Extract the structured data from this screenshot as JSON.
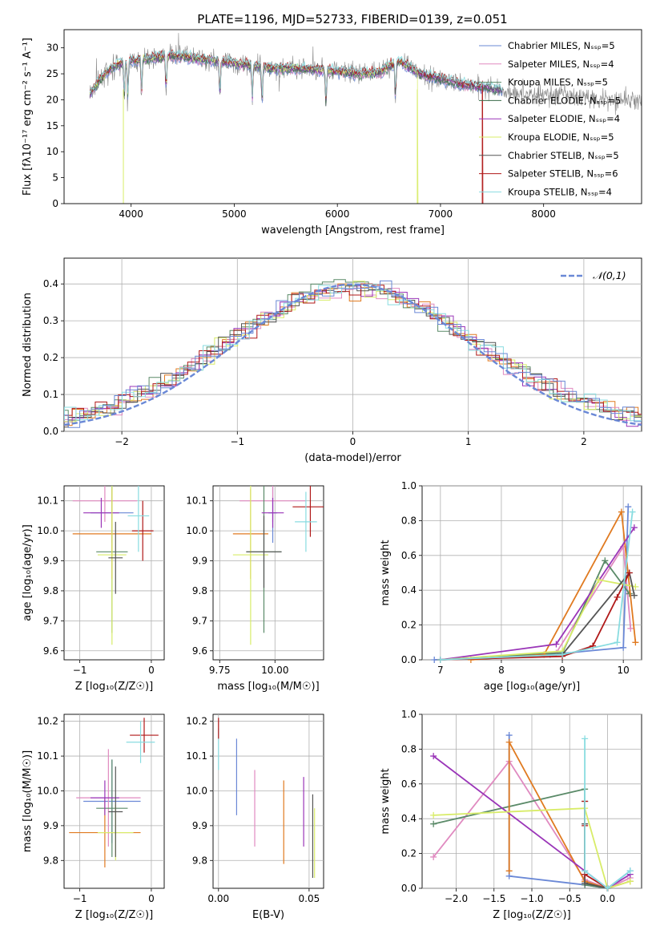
{
  "figure_title": "PLATE=1196, MJD=52733, FIBERID=0139, z=0.051",
  "colors": {
    "blue": "#6a88d6",
    "pink": "#e08ac0",
    "teal": "#5a8a68",
    "orange": "#e07a20",
    "purple": "#9a35b8",
    "lime": "#d8ec68",
    "darkgray": "#555555",
    "red": "#b01818",
    "cyan": "#88dce0",
    "gray": "#888888"
  },
  "chart_data": [
    {
      "id": "spectrum",
      "type": "line",
      "title": "PLATE=1196, MJD=52733, FIBERID=0139, z=0.051",
      "xlabel": "wavelength [Angstrom, rest frame]",
      "ylabel": "Flux [fλ10⁻¹⁷ erg cm⁻² s⁻¹ A⁻¹]",
      "xlim": [
        3350,
        8950
      ],
      "ylim": [
        0,
        33.5
      ],
      "xticks": [
        4000,
        5000,
        6000,
        7000,
        8000
      ],
      "yticks": [
        0,
        5,
        10,
        15,
        20,
        25,
        30
      ],
      "grid": false,
      "legend_position": "top-right",
      "series": [
        {
          "name": "Chabrier MILES, Nₛₛₚ=5",
          "color": "#6a88d6"
        },
        {
          "name": "Salpeter MILES, Nₛₛₚ=4",
          "color": "#e08ac0"
        },
        {
          "name": "Kroupa MILES, Nₛₛₚ=5",
          "color": "#5a8a68"
        },
        {
          "name": "Chabrier ELODIE, Nₛₛₚ=5",
          "color": "#3a6a48"
        },
        {
          "name": "Salpeter ELODIE, Nₛₛₚ=4",
          "color": "#9a35b8"
        },
        {
          "name": "Kroupa ELODIE, Nₛₛₚ=5",
          "color": "#d8ec68"
        },
        {
          "name": "Chabrier STELIB, Nₛₛₚ=5",
          "color": "#555555"
        },
        {
          "name": "Salpeter STELIB, Nₛₛₚ=6",
          "color": "#b01818"
        },
        {
          "name": "Kroupa STELIB, Nₛₛₚ=4",
          "color": "#88dce0"
        }
      ],
      "continuum": [
        [
          3600,
          21
        ],
        [
          3700,
          24
        ],
        [
          3800,
          26
        ],
        [
          3900,
          27
        ],
        [
          4000,
          27.5
        ],
        [
          4200,
          28
        ],
        [
          4400,
          28.5
        ],
        [
          4600,
          28
        ],
        [
          4800,
          27.5
        ],
        [
          5000,
          27
        ],
        [
          5200,
          26.5
        ],
        [
          5400,
          26
        ],
        [
          5600,
          26
        ],
        [
          5800,
          25.8
        ],
        [
          6000,
          25.5
        ],
        [
          6200,
          25
        ],
        [
          6400,
          25.3
        ],
        [
          6600,
          27.5
        ],
        [
          6800,
          25
        ],
        [
          7000,
          24
        ],
        [
          7200,
          23
        ],
        [
          7400,
          22.5
        ],
        [
          7600,
          21.8
        ],
        [
          7800,
          21.2
        ],
        [
          8000,
          21
        ],
        [
          8200,
          20.8
        ],
        [
          8400,
          20.5
        ],
        [
          8600,
          20.2
        ],
        [
          8800,
          20
        ],
        [
          8950,
          19.8
        ]
      ],
      "absorption_lines": [
        3934,
        3968,
        4102,
        4340,
        4861,
        5175,
        5270,
        5890,
        6563
      ],
      "model_gaps": [
        [
          3925,
          3935,
          "#d8ec68"
        ],
        [
          6775,
          6790,
          "#d8ec68"
        ],
        [
          7405,
          7415,
          "#b01818"
        ]
      ]
    },
    {
      "id": "residuals",
      "type": "area",
      "xlabel": "(data-model)/error",
      "ylabel": "Normed distribution",
      "xlim": [
        -2.5,
        2.5
      ],
      "ylim": [
        0,
        0.47
      ],
      "xticks": [
        -2,
        -1,
        0,
        1,
        2
      ],
      "yticks": [
        0.0,
        0.1,
        0.2,
        0.3,
        0.4
      ],
      "grid": true,
      "legend_position": "top-right",
      "reference_label": "𝒩(0,1)",
      "reference_color": "#6a88d6"
    },
    {
      "id": "age-vs-Z",
      "type": "scatter",
      "xlabel": "Z [log₁₀(Z/Z☉)]",
      "ylabel": "age  [log₁₀(age/yr)]",
      "xlim": [
        -1.22,
        0.18
      ],
      "ylim": [
        9.57,
        10.15
      ],
      "xticks": [
        -1,
        0
      ],
      "yticks": [
        9.6,
        9.7,
        9.8,
        9.9,
        10.0,
        10.1
      ],
      "grid": true,
      "points": [
        {
          "x": -0.55,
          "y": 10.06,
          "xerr": 0.3,
          "yerr": 0.1,
          "color": "#6a88d6"
        },
        {
          "x": -0.65,
          "y": 10.1,
          "xerr": 0.45,
          "yerr": 0.07,
          "color": "#e08ac0"
        },
        {
          "x": -0.55,
          "y": 9.93,
          "xerr": 0.22,
          "yerr": 0.27,
          "color": "#5a8a68"
        },
        {
          "x": -0.55,
          "y": 9.99,
          "xerr": 0.55,
          "yerr": 0.15,
          "color": "#e07a20"
        },
        {
          "x": -0.7,
          "y": 10.06,
          "xerr": 0.25,
          "yerr": 0.05,
          "color": "#9a35b8"
        },
        {
          "x": -0.55,
          "y": 9.92,
          "xerr": 0.2,
          "yerr": 0.3,
          "color": "#d8ec68"
        },
        {
          "x": -0.5,
          "y": 9.91,
          "xerr": 0.1,
          "yerr": 0.12,
          "color": "#555555"
        },
        {
          "x": -0.12,
          "y": 10.0,
          "xerr": 0.15,
          "yerr": 0.1,
          "color": "#b01818"
        },
        {
          "x": -0.18,
          "y": 10.05,
          "xerr": 0.15,
          "yerr": 0.12,
          "color": "#88dce0"
        }
      ]
    },
    {
      "id": "age-vs-mass",
      "type": "scatter",
      "xlabel": "mass [log₁₀(M/M☉)]",
      "ylabel": "",
      "xlim": [
        9.72,
        10.22
      ],
      "ylim": [
        9.57,
        10.15
      ],
      "xticks": [
        9.75,
        10.0
      ],
      "yticks": [
        9.6,
        9.7,
        9.8,
        9.9,
        10.0,
        10.1
      ],
      "grid": true,
      "points": [
        {
          "x": 9.99,
          "y": 10.06,
          "xerr": 0.02,
          "yerr": 0.1,
          "color": "#6a88d6"
        },
        {
          "x": 9.99,
          "y": 10.1,
          "xerr": 0.15,
          "yerr": 0.07,
          "color": "#e08ac0"
        },
        {
          "x": 9.95,
          "y": 9.93,
          "xerr": 0.08,
          "yerr": 0.27,
          "color": "#5a8a68"
        },
        {
          "x": 9.89,
          "y": 9.99,
          "xerr": 0.08,
          "yerr": 0.15,
          "color": "#e07a20"
        },
        {
          "x": 9.99,
          "y": 10.06,
          "xerr": 0.05,
          "yerr": 0.05,
          "color": "#9a35b8"
        },
        {
          "x": 9.89,
          "y": 9.92,
          "xerr": 0.08,
          "yerr": 0.3,
          "color": "#d8ec68"
        },
        {
          "x": 9.95,
          "y": 9.93,
          "xerr": 0.08,
          "yerr": 0.12,
          "color": "#555555"
        },
        {
          "x": 10.16,
          "y": 10.08,
          "xerr": 0.08,
          "yerr": 0.1,
          "color": "#b01818"
        },
        {
          "x": 10.14,
          "y": 10.03,
          "xerr": 0.05,
          "yerr": 0.1,
          "color": "#88dce0"
        }
      ]
    },
    {
      "id": "weight-vs-age",
      "type": "line",
      "xlabel": "age  [log₁₀(age/yr)]",
      "ylabel": "mass weight",
      "xlim": [
        6.7,
        10.3
      ],
      "ylim": [
        0,
        1.0
      ],
      "xticks": [
        7,
        8,
        9,
        10
      ],
      "yticks": [
        0.0,
        0.2,
        0.4,
        0.6,
        0.8,
        1.0
      ],
      "grid": true,
      "series": [
        {
          "color": "#6a88d6",
          "points": [
            [
              6.9,
              0.0
            ],
            [
              8.8,
              0.03
            ],
            [
              10.0,
              0.07
            ],
            [
              10.08,
              0.88
            ]
          ]
        },
        {
          "color": "#e08ac0",
          "points": [
            [
              7.0,
              0.0
            ],
            [
              8.9,
              0.04
            ],
            [
              10.0,
              0.65
            ],
            [
              10.12,
              0.18
            ]
          ]
        },
        {
          "color": "#5a8a68",
          "points": [
            [
              7.0,
              0.0
            ],
            [
              9.0,
              0.04
            ],
            [
              9.7,
              0.57
            ],
            [
              10.1,
              0.38
            ]
          ]
        },
        {
          "color": "#e07a20",
          "points": [
            [
              7.5,
              0.0
            ],
            [
              8.7,
              0.03
            ],
            [
              9.97,
              0.85
            ],
            [
              10.2,
              0.1
            ]
          ]
        },
        {
          "color": "#9a35b8",
          "points": [
            [
              7.0,
              0.0
            ],
            [
              8.9,
              0.09
            ],
            [
              10.18,
              0.76
            ]
          ]
        },
        {
          "color": "#d8ec68",
          "points": [
            [
              7.0,
              0.0
            ],
            [
              9.0,
              0.05
            ],
            [
              9.6,
              0.46
            ],
            [
              10.2,
              0.42
            ]
          ]
        },
        {
          "color": "#555555",
          "points": [
            [
              7.0,
              0.0
            ],
            [
              9.0,
              0.03
            ],
            [
              10.1,
              0.5
            ],
            [
              10.18,
              0.37
            ]
          ]
        },
        {
          "color": "#b01818",
          "points": [
            [
              7.0,
              0.0
            ],
            [
              9.0,
              0.02
            ],
            [
              9.5,
              0.08
            ],
            [
              9.9,
              0.36
            ],
            [
              10.1,
              0.5
            ]
          ]
        },
        {
          "color": "#88dce0",
          "points": [
            [
              7.0,
              0.0
            ],
            [
              9.0,
              0.03
            ],
            [
              9.9,
              0.1
            ],
            [
              10.15,
              0.85
            ]
          ]
        }
      ]
    },
    {
      "id": "mass-vs-Z",
      "type": "scatter",
      "xlabel": "Z [log₁₀(Z/Z☉)]",
      "ylabel": "mass [log₁₀(M/M☉)]",
      "xlim": [
        -1.22,
        0.18
      ],
      "ylim": [
        9.72,
        10.22
      ],
      "xticks": [
        -1,
        0
      ],
      "yticks": [
        9.8,
        9.9,
        10.0,
        10.1,
        10.2
      ],
      "grid": true,
      "points": [
        {
          "x": -0.55,
          "y": 9.97,
          "xerr": 0.4,
          "yerr": 0.12,
          "color": "#6a88d6"
        },
        {
          "x": -0.6,
          "y": 9.98,
          "xerr": 0.45,
          "yerr": 0.14,
          "color": "#e08ac0"
        },
        {
          "x": -0.55,
          "y": 9.95,
          "xerr": 0.22,
          "yerr": 0.14,
          "color": "#5a8a68"
        },
        {
          "x": -0.65,
          "y": 9.88,
          "xerr": 0.5,
          "yerr": 0.1,
          "color": "#e07a20"
        },
        {
          "x": -0.65,
          "y": 9.98,
          "xerr": 0.2,
          "yerr": 0.05,
          "color": "#9a35b8"
        },
        {
          "x": -0.5,
          "y": 9.88,
          "xerr": 0.25,
          "yerr": 0.08,
          "color": "#d8ec68"
        },
        {
          "x": -0.5,
          "y": 9.94,
          "xerr": 0.1,
          "yerr": 0.13,
          "color": "#555555"
        },
        {
          "x": -0.1,
          "y": 10.16,
          "xerr": 0.2,
          "yerr": 0.05,
          "color": "#b01818"
        },
        {
          "x": -0.15,
          "y": 10.14,
          "xerr": 0.2,
          "yerr": 0.06,
          "color": "#88dce0"
        }
      ]
    },
    {
      "id": "mass-vs-ebv",
      "type": "scatter",
      "xlabel": "E(B-V)",
      "ylabel": "",
      "xlim": [
        -0.003,
        0.058
      ],
      "ylim": [
        9.72,
        10.22
      ],
      "xticks": [
        0.0,
        0.05
      ],
      "xticklabels": [
        "0.00",
        "0.05"
      ],
      "yticks": [
        9.8,
        9.9,
        10.0,
        10.1,
        10.2
      ],
      "grid": true,
      "points": [
        {
          "x": 0.01,
          "y": 10.04,
          "yerr": 0.11,
          "color": "#6a88d6"
        },
        {
          "x": 0.02,
          "y": 9.95,
          "yerr": 0.11,
          "color": "#e08ac0"
        },
        {
          "x": 0.0,
          "y": 10.12,
          "yerr": 0.06,
          "color": "#88dce0"
        },
        {
          "x": 0.036,
          "y": 9.91,
          "yerr": 0.12,
          "color": "#e07a20"
        },
        {
          "x": 0.047,
          "y": 9.94,
          "yerr": 0.1,
          "color": "#9a35b8"
        },
        {
          "x": 0.052,
          "y": 9.87,
          "yerr": 0.12,
          "color": "#555555"
        },
        {
          "x": 0.053,
          "y": 9.85,
          "yerr": 0.1,
          "color": "#d8ec68"
        },
        {
          "x": 0.0,
          "y": 10.18,
          "yerr": 0.03,
          "color": "#b01818"
        }
      ]
    },
    {
      "id": "weight-vs-Z",
      "type": "line",
      "xlabel": "Z [log₁₀(Z/Z☉)]",
      "ylabel": "mass weight",
      "xlim": [
        -2.45,
        0.45
      ],
      "ylim": [
        0,
        1.0
      ],
      "xticks": [
        -2.0,
        -1.5,
        -1.0,
        -0.5,
        0.0
      ],
      "xticklabels": [
        "−2.0",
        "−1.5",
        "−1.0",
        "−0.5",
        "0.0"
      ],
      "yticks": [
        0.0,
        0.2,
        0.4,
        0.6,
        0.8,
        1.0
      ],
      "grid": true,
      "series": [
        {
          "color": "#6a88d6",
          "points": [
            [
              -1.3,
              0.88
            ],
            [
              -1.3,
              0.07
            ],
            [
              -0.3,
              0.02
            ],
            [
              0.0,
              0.0
            ],
            [
              0.3,
              0.1
            ]
          ]
        },
        {
          "color": "#e08ac0",
          "points": [
            [
              -2.3,
              0.18
            ],
            [
              -1.3,
              0.73
            ],
            [
              -0.3,
              0.05
            ],
            [
              0.0,
              0.0
            ],
            [
              0.3,
              0.06
            ]
          ]
        },
        {
          "color": "#5a8a68",
          "points": [
            [
              -2.3,
              0.37
            ],
            [
              -0.3,
              0.57
            ],
            [
              -0.3,
              0.02
            ],
            [
              0.0,
              0.0
            ]
          ]
        },
        {
          "color": "#e07a20",
          "points": [
            [
              -1.3,
              0.1
            ],
            [
              -1.3,
              0.84
            ],
            [
              -0.3,
              0.04
            ],
            [
              0.0,
              0.0
            ],
            [
              0.3,
              0.04
            ]
          ]
        },
        {
          "color": "#9a35b8",
          "points": [
            [
              -2.3,
              0.76
            ],
            [
              -0.3,
              0.1
            ],
            [
              0.0,
              0.0
            ],
            [
              0.3,
              0.08
            ]
          ]
        },
        {
          "color": "#d8ec68",
          "points": [
            [
              -2.3,
              0.42
            ],
            [
              -0.3,
              0.46
            ],
            [
              0.0,
              0.0
            ],
            [
              0.3,
              0.04
            ]
          ]
        },
        {
          "color": "#555555",
          "points": [
            [
              -0.3,
              0.5
            ],
            [
              -0.3,
              0.37
            ],
            [
              -0.3,
              0.03
            ],
            [
              0.0,
              0.0
            ]
          ]
        },
        {
          "color": "#b01818",
          "points": [
            [
              -0.3,
              0.5
            ],
            [
              -0.3,
              0.36
            ],
            [
              -0.3,
              0.08
            ],
            [
              0.0,
              0.0
            ]
          ]
        },
        {
          "color": "#88dce0",
          "points": [
            [
              -0.3,
              0.86
            ],
            [
              -0.3,
              0.1
            ],
            [
              0.0,
              0.0
            ],
            [
              0.3,
              0.1
            ]
          ]
        }
      ]
    }
  ]
}
